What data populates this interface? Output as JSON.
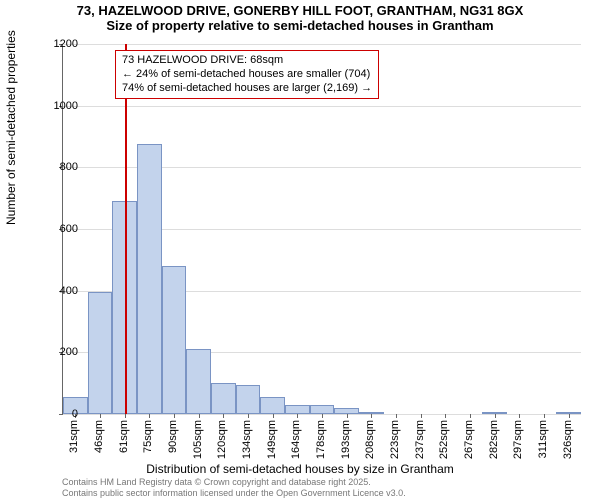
{
  "title": {
    "line1": "73, HAZELWOOD DRIVE, GONERBY HILL FOOT, GRANTHAM, NG31 8GX",
    "line2": "Size of property relative to semi-detached houses in Grantham"
  },
  "chart": {
    "type": "histogram",
    "ylabel": "Number of semi-detached properties",
    "xlabel": "Distribution of semi-detached houses by size in Grantham",
    "ylim": [
      0,
      1200
    ],
    "ytick_step": 200,
    "yticks": [
      0,
      200,
      400,
      600,
      800,
      1000,
      1200
    ],
    "x_categories": [
      "31sqm",
      "46sqm",
      "61sqm",
      "75sqm",
      "90sqm",
      "105sqm",
      "120sqm",
      "134sqm",
      "149sqm",
      "164sqm",
      "178sqm",
      "193sqm",
      "208sqm",
      "223sqm",
      "237sqm",
      "252sqm",
      "267sqm",
      "282sqm",
      "297sqm",
      "311sqm",
      "326sqm"
    ],
    "bar_values": [
      55,
      395,
      690,
      875,
      480,
      210,
      100,
      95,
      55,
      30,
      28,
      20,
      5,
      0,
      0,
      0,
      0,
      5,
      0,
      0,
      5
    ],
    "bar_fill": "#c3d3ec",
    "bar_border": "#7a94c4",
    "grid_color": "#dddddd",
    "background_color": "#ffffff",
    "marker": {
      "position_index": 2.5,
      "color": "#cc0000"
    },
    "annotation": {
      "line1": "73 HAZELWOOD DRIVE: 68sqm",
      "line2": "← 24% of semi-detached houses are smaller (704)",
      "line3": "74% of semi-detached houses are larger (2,169) →",
      "border_color": "#cc0000"
    }
  },
  "credits": {
    "line1": "Contains HM Land Registry data © Crown copyright and database right 2025.",
    "line2": "Contains public sector information licensed under the Open Government Licence v3.0."
  }
}
